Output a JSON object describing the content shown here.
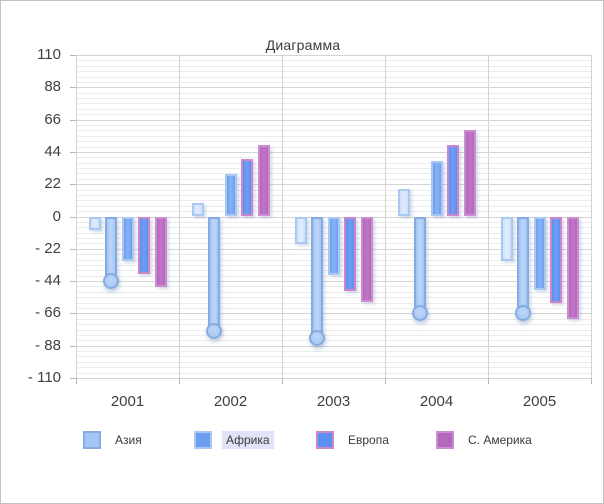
{
  "window": {
    "background": "#ffffff",
    "border_color": "#c4c4c4",
    "grid_major_color": "#d4d4d4",
    "grid_minor_color": "#ececec",
    "text_color": "#3f3f3f",
    "legend_highlight_color": "#e2e2f8"
  },
  "chart_data": {
    "type": "bar",
    "title": "Диаграмма",
    "xlabel": "",
    "ylabel": "",
    "categories": [
      "2001",
      "2002",
      "2003",
      "2004",
      "2005"
    ],
    "series": [
      {
        "name": "",
        "in_legend": false,
        "fill": "#cfe0fa",
        "fill_light": "#e1ecfc",
        "border": "#a9c8f2",
        "bullet": false,
        "values": [
          -9,
          9,
          -19,
          19,
          -30
        ]
      },
      {
        "name": "Азия",
        "in_legend": true,
        "fill": "#a3c5f5",
        "fill_light": "#bdd6f8",
        "border": "#85ace0",
        "bullet": true,
        "values": [
          -44,
          -78,
          -83,
          -66,
          -66
        ]
      },
      {
        "name": "Африка",
        "in_legend": true,
        "fill": "#6d9ff1",
        "fill_light": "#89b2f4",
        "border": "#a9c8f2",
        "bullet": false,
        "values": [
          -30,
          29,
          -40,
          38,
          -50
        ]
      },
      {
        "name": "Европа",
        "in_legend": true,
        "fill": "#5b90f0",
        "fill_light": "#6f9ef3",
        "border": "#cd86ca",
        "bullet": false,
        "values": [
          -39,
          39,
          -51,
          49,
          -59
        ]
      },
      {
        "name": "С. Америка",
        "in_legend": true,
        "fill": "#b566bd",
        "fill_light": "#c077c7",
        "border": "#cb8ed1",
        "bullet": false,
        "values": [
          -48,
          49,
          -58,
          59,
          -70
        ]
      }
    ],
    "ylim": [
      -110,
      110
    ],
    "ytick_step": 22,
    "minor_divisions_per_step": 6,
    "grid": true,
    "legend_position": "bottom"
  },
  "axis": {
    "y_labels": [
      "110",
      "88",
      "66",
      "44",
      "22",
      "0",
      "- 22",
      "- 44",
      "- 66",
      "- 88",
      "- 110"
    ],
    "x_labels": [
      "2001",
      "2002",
      "2003",
      "2004",
      "2005"
    ]
  },
  "legend": {
    "items": [
      {
        "label": "Азия",
        "highlighted": false
      },
      {
        "label": "Африка",
        "highlighted": true
      },
      {
        "label": "Европа",
        "highlighted": false
      },
      {
        "label": "С. Америка",
        "highlighted": false
      }
    ]
  }
}
